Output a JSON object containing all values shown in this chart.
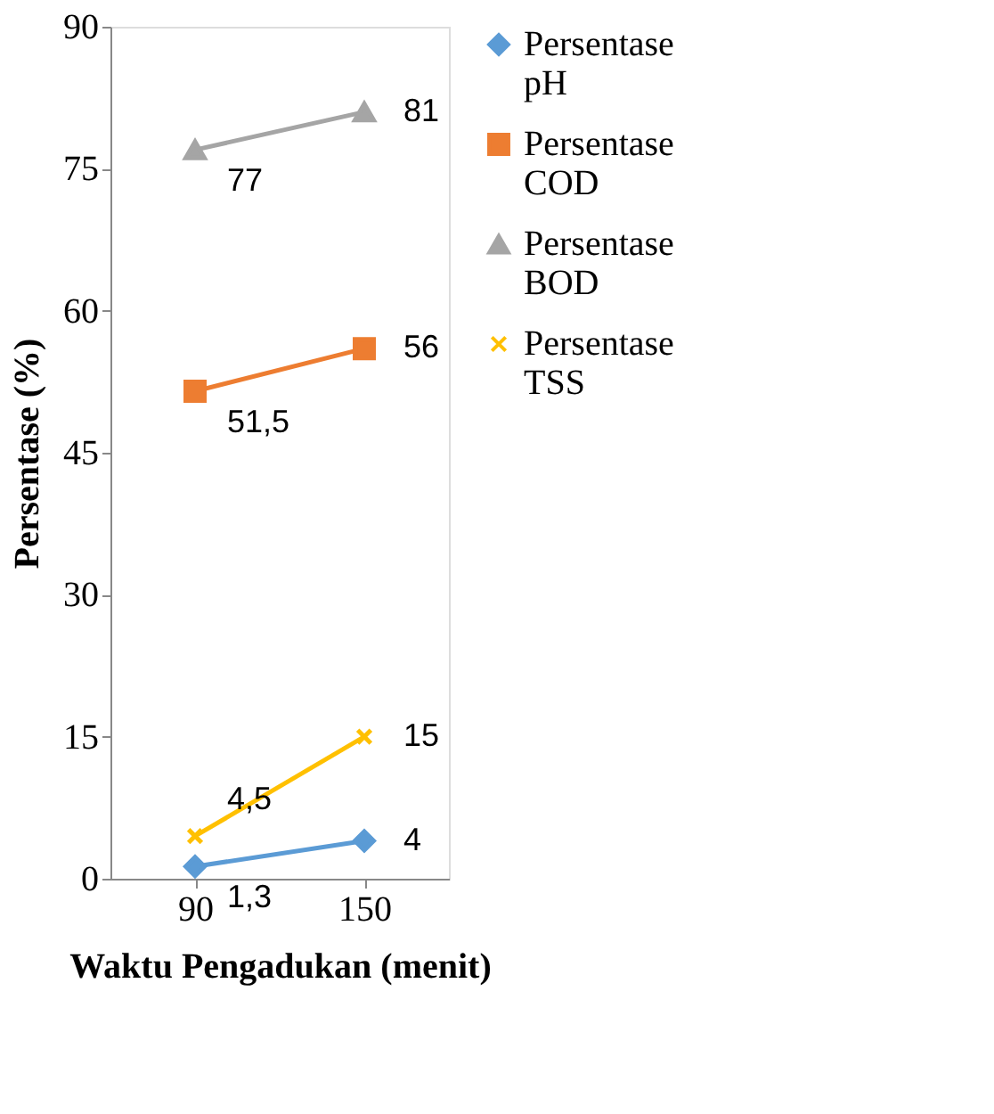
{
  "chart_data": {
    "type": "line",
    "xlabel": "Waktu Pengadukan (menit)",
    "ylabel": "Persentase (%)",
    "categories": [
      "90",
      "150"
    ],
    "series": [
      {
        "name": "Persentase pH",
        "color": "#5b9bd5",
        "marker": "diamond",
        "values": [
          1.3,
          4
        ],
        "value_labels": [
          "1,3",
          "4"
        ]
      },
      {
        "name": "Persentase COD",
        "color": "#ed7d31",
        "marker": "square",
        "values": [
          51.5,
          56
        ],
        "value_labels": [
          "51,5",
          "56"
        ]
      },
      {
        "name": "Persentase BOD",
        "color": "#a5a5a5",
        "marker": "triangle",
        "values": [
          77,
          81
        ],
        "value_labels": [
          "77",
          "81"
        ]
      },
      {
        "name": "Persentase TSS",
        "color": "#ffc000",
        "marker": "cross",
        "values": [
          4.5,
          15
        ],
        "value_labels": [
          "4,5",
          "15"
        ]
      }
    ],
    "ylim": [
      0,
      90
    ],
    "yticks": [
      0,
      15,
      30,
      45,
      60,
      75,
      90
    ],
    "grid": false,
    "legend": "right",
    "line_style": "solid"
  }
}
